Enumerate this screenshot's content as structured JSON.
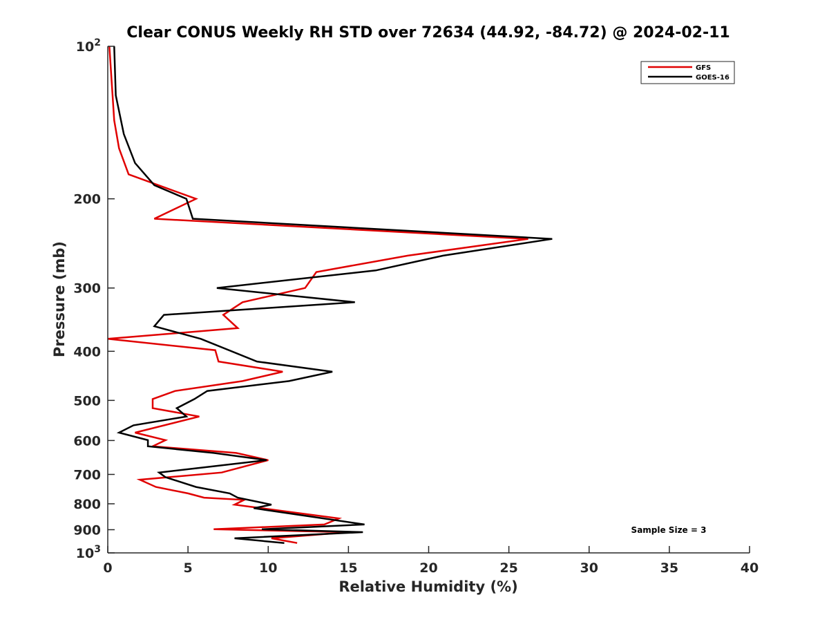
{
  "chart_data": {
    "type": "line",
    "title": "Clear CONUS Weekly RH STD over 72634 (44.92, -84.72) @ 2024-02-11",
    "xlabel": "Relative Humidity (%)",
    "ylabel": "Pressure (mb)",
    "xlim": [
      0,
      40
    ],
    "ylim": [
      100,
      1000
    ],
    "yscale": "log",
    "y_reversed": true,
    "grid": false,
    "legend_position": "top-right",
    "xticks": [
      0,
      5,
      10,
      15,
      20,
      25,
      30,
      35,
      40
    ],
    "xtick_labels": [
      "0",
      "5",
      "10",
      "15",
      "20",
      "25",
      "30",
      "35",
      "40"
    ],
    "yticks": [
      100,
      200,
      300,
      400,
      500,
      600,
      700,
      800,
      900,
      1000
    ],
    "ytick_labels": [
      "10^2",
      "200",
      "300",
      "400",
      "500",
      "600",
      "700",
      "800",
      "900",
      "10^3"
    ],
    "annotation": "Sample Size = 3",
    "series": [
      {
        "name": "GFS",
        "color": "#e00000",
        "points": [
          [
            0.1,
            100
          ],
          [
            0.4,
            140
          ],
          [
            0.7,
            159
          ],
          [
            1.3,
            179
          ],
          [
            5.5,
            200
          ],
          [
            2.9,
            219
          ],
          [
            26.2,
            240
          ],
          [
            18.7,
            259
          ],
          [
            13.0,
            279
          ],
          [
            12.3,
            300
          ],
          [
            8.4,
            320
          ],
          [
            7.2,
            339
          ],
          [
            8.1,
            360
          ],
          [
            0.0,
            378
          ],
          [
            6.7,
            398
          ],
          [
            6.9,
            419
          ],
          [
            10.9,
            439
          ],
          [
            8.4,
            458
          ],
          [
            4.2,
            479
          ],
          [
            2.8,
            497
          ],
          [
            2.8,
            518
          ],
          [
            5.7,
            538
          ],
          [
            1.7,
            579
          ],
          [
            3.6,
            599
          ],
          [
            2.8,
            616
          ],
          [
            8.0,
            635
          ],
          [
            10.0,
            656
          ],
          [
            7.1,
            694
          ],
          [
            2.0,
            717
          ],
          [
            3.0,
            741
          ],
          [
            5.0,
            763
          ],
          [
            6.0,
            778
          ],
          [
            8.5,
            786
          ],
          [
            7.9,
            803
          ],
          [
            14.4,
            855
          ],
          [
            13.5,
            879
          ],
          [
            6.6,
            898
          ],
          [
            15.0,
            910
          ],
          [
            10.2,
            936
          ],
          [
            11.8,
            956
          ]
        ]
      },
      {
        "name": "GOES-16",
        "color": "#000000",
        "points": [
          [
            0.4,
            100
          ],
          [
            0.5,
            125
          ],
          [
            1.0,
            149
          ],
          [
            1.7,
            170
          ],
          [
            2.9,
            188
          ],
          [
            4.9,
            200
          ],
          [
            5.3,
            219
          ],
          [
            27.7,
            240
          ],
          [
            20.9,
            259
          ],
          [
            16.7,
            277
          ],
          [
            6.8,
            300
          ],
          [
            15.4,
            320
          ],
          [
            3.5,
            339
          ],
          [
            2.9,
            357
          ],
          [
            5.8,
            378
          ],
          [
            9.3,
            419
          ],
          [
            14.0,
            439
          ],
          [
            11.3,
            458
          ],
          [
            6.2,
            479
          ],
          [
            5.4,
            497
          ],
          [
            4.3,
            518
          ],
          [
            4.9,
            538
          ],
          [
            1.6,
            560
          ],
          [
            0.7,
            579
          ],
          [
            2.5,
            599
          ],
          [
            2.5,
            616
          ],
          [
            6.6,
            635
          ],
          [
            9.9,
            656
          ],
          [
            6.0,
            678
          ],
          [
            3.2,
            694
          ],
          [
            3.6,
            709
          ],
          [
            5.5,
            741
          ],
          [
            7.6,
            763
          ],
          [
            8.1,
            778
          ],
          [
            10.2,
            803
          ],
          [
            9.1,
            816
          ],
          [
            16.0,
            879
          ],
          [
            9.6,
            898
          ],
          [
            15.9,
            910
          ],
          [
            7.9,
            936
          ],
          [
            11.0,
            956
          ]
        ]
      }
    ]
  }
}
